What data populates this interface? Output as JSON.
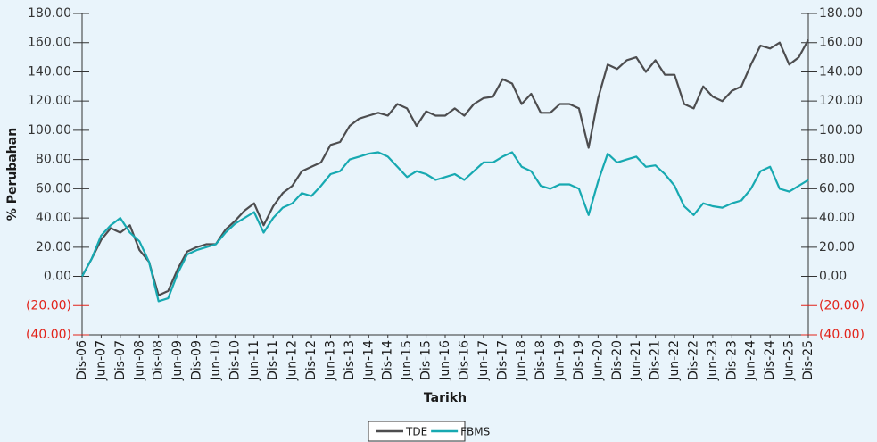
{
  "chart_data": {
    "type": "line",
    "y_label": "% Perubahan",
    "x_label": "Tarikh",
    "categories": [
      "Dis-06",
      null,
      "Jun-07",
      null,
      "Dis-07",
      null,
      "Jun-08",
      null,
      "Dis-08",
      null,
      "Jun-09",
      null,
      "Dis-09",
      null,
      "Jun-10",
      null,
      "Dis-10",
      null,
      "Jun-11",
      null,
      "Dis-11",
      null,
      "Jun-12",
      null,
      "Dis-12",
      null,
      "Jun-13",
      null,
      "Dis-13",
      null,
      "Jun-14",
      null,
      "Dis-14",
      null,
      "Jun-15",
      null,
      "Dis-15",
      null,
      "Jun-16",
      null,
      "Dis-16",
      null,
      "Jun-17",
      null,
      "Dis-17",
      null,
      "Jun-18",
      null,
      "Dis-18",
      null,
      "Jun-19",
      null,
      "Dis-19",
      null,
      "Jun-20",
      null,
      "Dis-20",
      null,
      "Jun-21",
      null,
      "Dis-21",
      null,
      "Jun-22",
      null,
      "Dis-22",
      null,
      "Jun-23",
      null,
      "Dis-23",
      null,
      "Jun-24",
      null,
      "Dis-24",
      null,
      "Jun-25",
      null,
      "Dis-25"
    ],
    "series": [
      {
        "name": "TDE",
        "color": "#4d4d4f",
        "values": [
          0,
          12,
          25,
          33,
          30,
          35,
          18,
          10,
          -13,
          -10,
          5,
          17,
          20,
          22,
          22,
          32,
          38,
          45,
          50,
          35,
          48,
          57,
          62,
          72,
          75,
          78,
          90,
          92,
          103,
          108,
          110,
          112,
          110,
          118,
          115,
          103,
          113,
          110,
          110,
          115,
          110,
          118,
          122,
          123,
          135,
          132,
          118,
          125,
          112,
          112,
          118,
          118,
          115,
          88,
          122,
          145,
          142,
          148,
          150,
          140,
          148,
          138,
          138,
          118,
          115,
          130,
          123,
          120,
          127,
          130,
          145,
          158,
          156,
          160,
          145,
          150,
          162
        ]
      },
      {
        "name": "FBMS",
        "color": "#17a9b1",
        "values": [
          0,
          12,
          28,
          35,
          40,
          30,
          24,
          10,
          -17,
          -15,
          2,
          15,
          18,
          20,
          22,
          30,
          36,
          40,
          44,
          30,
          40,
          47,
          50,
          57,
          55,
          62,
          70,
          72,
          80,
          82,
          84,
          85,
          82,
          75,
          68,
          72,
          70,
          66,
          68,
          70,
          66,
          72,
          78,
          78,
          82,
          85,
          75,
          72,
          62,
          60,
          63,
          63,
          60,
          42,
          65,
          84,
          78,
          80,
          82,
          75,
          76,
          70,
          62,
          48,
          42,
          50,
          48,
          47,
          50,
          52,
          60,
          72,
          75,
          60,
          58,
          62,
          66
        ]
      }
    ],
    "ylim": [
      -40,
      180
    ],
    "yticks": [
      {
        "value": -40,
        "label": "(40.00)"
      },
      {
        "value": -20,
        "label": "(20.00)"
      },
      {
        "value": 0,
        "label": "0.00"
      },
      {
        "value": 20,
        "label": "20.00"
      },
      {
        "value": 40,
        "label": "40.00"
      },
      {
        "value": 60,
        "label": "60.00"
      },
      {
        "value": 80,
        "label": "80.00"
      },
      {
        "value": 100,
        "label": "100.00"
      },
      {
        "value": 120,
        "label": "120.00"
      },
      {
        "value": 140,
        "label": "140.00"
      },
      {
        "value": 160,
        "label": "160.00"
      },
      {
        "value": 180,
        "label": "180.00"
      }
    ],
    "negative_tick_color": "#e2231a",
    "mirror_y_axis": true,
    "grid": false,
    "legend": "bottom"
  }
}
